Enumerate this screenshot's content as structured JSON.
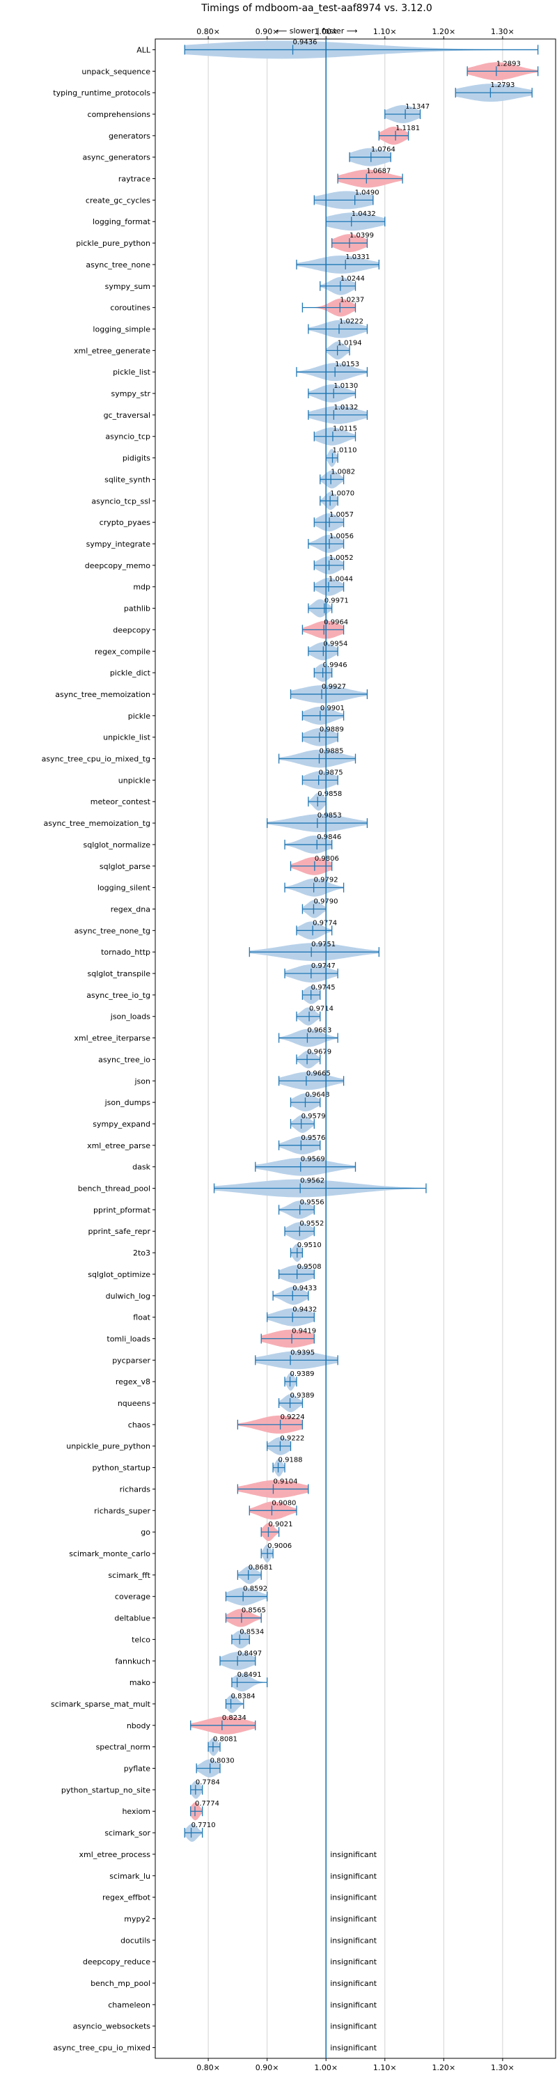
{
  "chart_data": {
    "type": "violin",
    "title": "Timings of mdboom-aa_test-aaf8974 vs. 3.12.0",
    "subtitle": "⟵ slower | faster ⟶",
    "x_tick_labels": [
      "0.80×",
      "0.90×",
      "1.00×",
      "1.10×",
      "1.20×",
      "1.30×"
    ],
    "x_ticks": [
      0.8,
      0.9,
      1.0,
      1.1,
      1.2,
      1.3
    ],
    "xlim": [
      0.71,
      1.39
    ],
    "reference_x": 1.0,
    "grid": true,
    "colors": {
      "faster": "#b4cfe8",
      "slower": "#f5aab0",
      "line": "#1f77b4",
      "grid": "#d3d3d3"
    },
    "insignificant_label": "insignificant",
    "benchmarks": [
      {
        "name": "ALL",
        "median": 0.9436,
        "label": "0.9436",
        "min": 0.76,
        "max": 1.36,
        "q1": 0.8,
        "q3": 1.05,
        "slower": false
      },
      {
        "name": "unpack_sequence",
        "median": 1.2893,
        "label": "1.2893",
        "min": 1.24,
        "max": 1.36,
        "q1": 1.26,
        "q3": 1.32,
        "slower": true
      },
      {
        "name": "typing_runtime_protocols",
        "median": 1.2793,
        "label": "1.2793",
        "min": 1.22,
        "max": 1.35,
        "q1": 1.24,
        "q3": 1.32,
        "slower": false
      },
      {
        "name": "comprehensions",
        "median": 1.1347,
        "label": "1.1347",
        "min": 1.1,
        "max": 1.16,
        "q1": 1.11,
        "q3": 1.15,
        "slower": false
      },
      {
        "name": "generators",
        "median": 1.1181,
        "label": "1.1181",
        "min": 1.09,
        "max": 1.14,
        "q1": 1.1,
        "q3": 1.13,
        "slower": true
      },
      {
        "name": "async_generators",
        "median": 1.0764,
        "label": "1.0764",
        "min": 1.04,
        "max": 1.11,
        "q1": 1.05,
        "q3": 1.1,
        "slower": false
      },
      {
        "name": "raytrace",
        "median": 1.0687,
        "label": "1.0687",
        "min": 1.02,
        "max": 1.13,
        "q1": 1.04,
        "q3": 1.1,
        "slower": true
      },
      {
        "name": "create_gc_cycles",
        "median": 1.049,
        "label": "1.0490",
        "min": 0.98,
        "max": 1.08,
        "q1": 1.0,
        "q3": 1.07,
        "slower": false
      },
      {
        "name": "logging_format",
        "median": 1.0432,
        "label": "1.0432",
        "min": 1.0,
        "max": 1.1,
        "q1": 1.01,
        "q3": 1.08,
        "slower": false
      },
      {
        "name": "pickle_pure_python",
        "median": 1.0399,
        "label": "1.0399",
        "min": 1.01,
        "max": 1.07,
        "q1": 1.02,
        "q3": 1.06,
        "slower": true
      },
      {
        "name": "async_tree_none",
        "median": 1.0331,
        "label": "1.0331",
        "min": 0.95,
        "max": 1.09,
        "q1": 0.99,
        "q3": 1.06,
        "slower": false
      },
      {
        "name": "sympy_sum",
        "median": 1.0244,
        "label": "1.0244",
        "min": 0.99,
        "max": 1.05,
        "q1": 1.01,
        "q3": 1.04,
        "slower": false
      },
      {
        "name": "coroutines",
        "median": 1.0237,
        "label": "1.0237",
        "min": 0.96,
        "max": 1.05,
        "q1": 1.01,
        "q3": 1.04,
        "slower": true
      },
      {
        "name": "logging_simple",
        "median": 1.0222,
        "label": "1.0222",
        "min": 0.97,
        "max": 1.07,
        "q1": 1.0,
        "q3": 1.05,
        "slower": false
      },
      {
        "name": "xml_etree_generate",
        "median": 1.0194,
        "label": "1.0194",
        "min": 1.0,
        "max": 1.04,
        "q1": 1.01,
        "q3": 1.03,
        "slower": false
      },
      {
        "name": "pickle_list",
        "median": 1.0153,
        "label": "1.0153",
        "min": 0.95,
        "max": 1.07,
        "q1": 0.99,
        "q3": 1.04,
        "slower": false
      },
      {
        "name": "sympy_str",
        "median": 1.013,
        "label": "1.0130",
        "min": 0.97,
        "max": 1.05,
        "q1": 0.99,
        "q3": 1.03,
        "slower": false
      },
      {
        "name": "gc_traversal",
        "median": 1.0132,
        "label": "1.0132",
        "min": 0.97,
        "max": 1.07,
        "q1": 0.99,
        "q3": 1.05,
        "slower": false
      },
      {
        "name": "asyncio_tcp",
        "median": 1.0115,
        "label": "1.0115",
        "min": 0.98,
        "max": 1.05,
        "q1": 0.99,
        "q3": 1.03,
        "slower": false
      },
      {
        "name": "pidigits",
        "median": 1.011,
        "label": "1.0110",
        "min": 1.0,
        "max": 1.02,
        "q1": 1.005,
        "q3": 1.015,
        "slower": false
      },
      {
        "name": "sqlite_synth",
        "median": 1.0082,
        "label": "1.0082",
        "min": 0.99,
        "max": 1.03,
        "q1": 1.0,
        "q3": 1.02,
        "slower": false
      },
      {
        "name": "asyncio_tcp_ssl",
        "median": 1.007,
        "label": "1.0070",
        "min": 0.99,
        "max": 1.02,
        "q1": 1.0,
        "q3": 1.015,
        "slower": false
      },
      {
        "name": "crypto_pyaes",
        "median": 1.0057,
        "label": "1.0057",
        "min": 0.98,
        "max": 1.03,
        "q1": 0.99,
        "q3": 1.02,
        "slower": false
      },
      {
        "name": "sympy_integrate",
        "median": 1.0056,
        "label": "1.0056",
        "min": 0.97,
        "max": 1.03,
        "q1": 0.99,
        "q3": 1.02,
        "slower": false
      },
      {
        "name": "deepcopy_memo",
        "median": 1.0052,
        "label": "1.0052",
        "min": 0.98,
        "max": 1.03,
        "q1": 0.99,
        "q3": 1.02,
        "slower": false
      },
      {
        "name": "mdp",
        "median": 1.0044,
        "label": "1.0044",
        "min": 0.98,
        "max": 1.03,
        "q1": 0.99,
        "q3": 1.02,
        "slower": false
      },
      {
        "name": "pathlib",
        "median": 0.9971,
        "label": "0.9971",
        "min": 0.97,
        "max": 1.01,
        "q1": 0.98,
        "q3": 1.0,
        "slower": false
      },
      {
        "name": "deepcopy",
        "median": 0.9964,
        "label": "0.9964",
        "min": 0.96,
        "max": 1.03,
        "q1": 0.98,
        "q3": 1.02,
        "slower": true
      },
      {
        "name": "regex_compile",
        "median": 0.9954,
        "label": "0.9954",
        "min": 0.97,
        "max": 1.02,
        "q1": 0.98,
        "q3": 1.01,
        "slower": false
      },
      {
        "name": "pickle_dict",
        "median": 0.9946,
        "label": "0.9946",
        "min": 0.98,
        "max": 1.01,
        "q1": 0.985,
        "q3": 1.005,
        "slower": false
      },
      {
        "name": "async_tree_memoization",
        "median": 0.9927,
        "label": "0.9927",
        "min": 0.94,
        "max": 1.07,
        "q1": 0.96,
        "q3": 1.03,
        "slower": false
      },
      {
        "name": "pickle",
        "median": 0.9901,
        "label": "0.9901",
        "min": 0.96,
        "max": 1.03,
        "q1": 0.97,
        "q3": 1.01,
        "slower": false
      },
      {
        "name": "unpickle_list",
        "median": 0.9889,
        "label": "0.9889",
        "min": 0.96,
        "max": 1.02,
        "q1": 0.97,
        "q3": 1.01,
        "slower": false
      },
      {
        "name": "async_tree_cpu_io_mixed_tg",
        "median": 0.9885,
        "label": "0.9885",
        "min": 0.92,
        "max": 1.05,
        "q1": 0.96,
        "q3": 1.02,
        "slower": false
      },
      {
        "name": "unpickle",
        "median": 0.9875,
        "label": "0.9875",
        "min": 0.96,
        "max": 1.02,
        "q1": 0.97,
        "q3": 1.01,
        "slower": false
      },
      {
        "name": "meteor_contest",
        "median": 0.9858,
        "label": "0.9858",
        "min": 0.97,
        "max": 1.0,
        "q1": 0.98,
        "q3": 0.995,
        "slower": false
      },
      {
        "name": "async_tree_memoization_tg",
        "median": 0.9853,
        "label": "0.9853",
        "min": 0.9,
        "max": 1.07,
        "q1": 0.95,
        "q3": 1.03,
        "slower": false
      },
      {
        "name": "sqlglot_normalize",
        "median": 0.9846,
        "label": "0.9846",
        "min": 0.93,
        "max": 1.01,
        "q1": 0.96,
        "q3": 1.0,
        "slower": false
      },
      {
        "name": "sqlglot_parse",
        "median": 0.9806,
        "label": "0.9806",
        "min": 0.94,
        "max": 1.01,
        "q1": 0.96,
        "q3": 1.0,
        "slower": true
      },
      {
        "name": "logging_silent",
        "median": 0.9792,
        "label": "0.9792",
        "min": 0.93,
        "max": 1.03,
        "q1": 0.96,
        "q3": 1.0,
        "slower": false
      },
      {
        "name": "regex_dna",
        "median": 0.979,
        "label": "0.9790",
        "min": 0.96,
        "max": 1.0,
        "q1": 0.97,
        "q3": 0.99,
        "slower": false
      },
      {
        "name": "async_tree_none_tg",
        "median": 0.9774,
        "label": "0.9774",
        "min": 0.95,
        "max": 1.01,
        "q1": 0.96,
        "q3": 0.99,
        "slower": false
      },
      {
        "name": "tornado_http",
        "median": 0.9751,
        "label": "0.9751",
        "min": 0.87,
        "max": 1.09,
        "q1": 0.93,
        "q3": 1.03,
        "slower": false
      },
      {
        "name": "sqlglot_transpile",
        "median": 0.9747,
        "label": "0.9747",
        "min": 0.93,
        "max": 1.02,
        "q1": 0.95,
        "q3": 1.0,
        "slower": false
      },
      {
        "name": "async_tree_io_tg",
        "median": 0.9745,
        "label": "0.9745",
        "min": 0.96,
        "max": 0.99,
        "q1": 0.965,
        "q3": 0.985,
        "slower": false
      },
      {
        "name": "json_loads",
        "median": 0.9714,
        "label": "0.9714",
        "min": 0.95,
        "max": 0.99,
        "q1": 0.96,
        "q3": 0.98,
        "slower": false
      },
      {
        "name": "xml_etree_iterparse",
        "median": 0.9683,
        "label": "0.9683",
        "min": 0.92,
        "max": 1.02,
        "q1": 0.95,
        "q3": 0.99,
        "slower": false
      },
      {
        "name": "async_tree_io",
        "median": 0.9679,
        "label": "0.9679",
        "min": 0.95,
        "max": 0.99,
        "q1": 0.96,
        "q3": 0.98,
        "slower": false
      },
      {
        "name": "json",
        "median": 0.9665,
        "label": "0.9665",
        "min": 0.92,
        "max": 1.03,
        "q1": 0.94,
        "q3": 1.0,
        "slower": false
      },
      {
        "name": "json_dumps",
        "median": 0.9648,
        "label": "0.9648",
        "min": 0.94,
        "max": 0.99,
        "q1": 0.95,
        "q3": 0.98,
        "slower": false
      },
      {
        "name": "sympy_expand",
        "median": 0.9579,
        "label": "0.9579",
        "min": 0.94,
        "max": 0.98,
        "q1": 0.95,
        "q3": 0.97,
        "slower": false
      },
      {
        "name": "xml_etree_parse",
        "median": 0.9576,
        "label": "0.9576",
        "min": 0.92,
        "max": 0.99,
        "q1": 0.94,
        "q3": 0.98,
        "slower": false
      },
      {
        "name": "dask",
        "median": 0.9569,
        "label": "0.9569",
        "min": 0.88,
        "max": 1.05,
        "q1": 0.92,
        "q3": 1.0,
        "slower": false
      },
      {
        "name": "bench_thread_pool",
        "median": 0.9562,
        "label": "0.9562",
        "min": 0.81,
        "max": 1.17,
        "q1": 0.88,
        "q3": 1.03,
        "slower": false
      },
      {
        "name": "pprint_pformat",
        "median": 0.9556,
        "label": "0.9556",
        "min": 0.92,
        "max": 0.98,
        "q1": 0.94,
        "q3": 0.97,
        "slower": false
      },
      {
        "name": "pprint_safe_repr",
        "median": 0.9552,
        "label": "0.9552",
        "min": 0.93,
        "max": 0.98,
        "q1": 0.94,
        "q3": 0.97,
        "slower": false
      },
      {
        "name": "2to3",
        "median": 0.951,
        "label": "0.9510",
        "min": 0.94,
        "max": 0.96,
        "q1": 0.945,
        "q3": 0.957,
        "slower": false
      },
      {
        "name": "sqlglot_optimize",
        "median": 0.9508,
        "label": "0.9508",
        "min": 0.92,
        "max": 0.98,
        "q1": 0.93,
        "q3": 0.97,
        "slower": false
      },
      {
        "name": "dulwich_log",
        "median": 0.9433,
        "label": "0.9433",
        "min": 0.91,
        "max": 0.97,
        "q1": 0.93,
        "q3": 0.96,
        "slower": false
      },
      {
        "name": "float",
        "median": 0.9432,
        "label": "0.9432",
        "min": 0.9,
        "max": 0.98,
        "q1": 0.92,
        "q3": 0.97,
        "slower": false
      },
      {
        "name": "tomli_loads",
        "median": 0.9419,
        "label": "0.9419",
        "min": 0.89,
        "max": 0.98,
        "q1": 0.91,
        "q3": 0.97,
        "slower": true
      },
      {
        "name": "pycparser",
        "median": 0.9395,
        "label": "0.9395",
        "min": 0.88,
        "max": 1.02,
        "q1": 0.91,
        "q3": 0.99,
        "slower": false
      },
      {
        "name": "regex_v8",
        "median": 0.9389,
        "label": "0.9389",
        "min": 0.93,
        "max": 0.95,
        "q1": 0.935,
        "q3": 0.945,
        "slower": false
      },
      {
        "name": "nqueens",
        "median": 0.9389,
        "label": "0.9389",
        "min": 0.92,
        "max": 0.96,
        "q1": 0.93,
        "q3": 0.95,
        "slower": false
      },
      {
        "name": "chaos",
        "median": 0.9224,
        "label": "0.9224",
        "min": 0.85,
        "max": 0.96,
        "q1": 0.89,
        "q3": 0.95,
        "slower": true
      },
      {
        "name": "unpickle_pure_python",
        "median": 0.9222,
        "label": "0.9222",
        "min": 0.9,
        "max": 0.94,
        "q1": 0.91,
        "q3": 0.935,
        "slower": false
      },
      {
        "name": "python_startup",
        "median": 0.9188,
        "label": "0.9188",
        "min": 0.91,
        "max": 0.93,
        "q1": 0.915,
        "q3": 0.925,
        "slower": false
      },
      {
        "name": "richards",
        "median": 0.9104,
        "label": "0.9104",
        "min": 0.85,
        "max": 0.97,
        "q1": 0.88,
        "q3": 0.95,
        "slower": true
      },
      {
        "name": "richards_super",
        "median": 0.908,
        "label": "0.9080",
        "min": 0.87,
        "max": 0.95,
        "q1": 0.89,
        "q3": 0.93,
        "slower": true
      },
      {
        "name": "go",
        "median": 0.9021,
        "label": "0.9021",
        "min": 0.89,
        "max": 0.92,
        "q1": 0.895,
        "q3": 0.91,
        "slower": true
      },
      {
        "name": "scimark_monte_carlo",
        "median": 0.9006,
        "label": "0.9006",
        "min": 0.89,
        "max": 0.91,
        "q1": 0.895,
        "q3": 0.905,
        "slower": false
      },
      {
        "name": "scimark_fft",
        "median": 0.8681,
        "label": "0.8681",
        "min": 0.85,
        "max": 0.89,
        "q1": 0.86,
        "q3": 0.88,
        "slower": false
      },
      {
        "name": "coverage",
        "median": 0.8592,
        "label": "0.8592",
        "min": 0.83,
        "max": 0.9,
        "q1": 0.84,
        "q3": 0.88,
        "slower": false
      },
      {
        "name": "deltablue",
        "median": 0.8565,
        "label": "0.8565",
        "min": 0.83,
        "max": 0.89,
        "q1": 0.84,
        "q3": 0.87,
        "slower": true
      },
      {
        "name": "telco",
        "median": 0.8534,
        "label": "0.8534",
        "min": 0.84,
        "max": 0.87,
        "q1": 0.845,
        "q3": 0.865,
        "slower": false
      },
      {
        "name": "fannkuch",
        "median": 0.8497,
        "label": "0.8497",
        "min": 0.82,
        "max": 0.88,
        "q1": 0.83,
        "q3": 0.87,
        "slower": false
      },
      {
        "name": "mako",
        "median": 0.8491,
        "label": "0.8491",
        "min": 0.84,
        "max": 0.9,
        "q1": 0.845,
        "q3": 0.87,
        "slower": false
      },
      {
        "name": "scimark_sparse_mat_mult",
        "median": 0.8384,
        "label": "0.8384",
        "min": 0.83,
        "max": 0.86,
        "q1": 0.833,
        "q3": 0.848,
        "slower": false
      },
      {
        "name": "nbody",
        "median": 0.8234,
        "label": "0.8234",
        "min": 0.77,
        "max": 0.88,
        "q1": 0.8,
        "q3": 0.86,
        "slower": true
      },
      {
        "name": "spectral_norm",
        "median": 0.8081,
        "label": "0.8081",
        "min": 0.8,
        "max": 0.82,
        "q1": 0.803,
        "q3": 0.815,
        "slower": false
      },
      {
        "name": "pyflate",
        "median": 0.803,
        "label": "0.8030",
        "min": 0.78,
        "max": 0.82,
        "q1": 0.79,
        "q3": 0.815,
        "slower": false
      },
      {
        "name": "python_startup_no_site",
        "median": 0.7784,
        "label": "0.7784",
        "min": 0.77,
        "max": 0.79,
        "q1": 0.773,
        "q3": 0.785,
        "slower": false
      },
      {
        "name": "hexiom",
        "median": 0.7774,
        "label": "0.7774",
        "min": 0.77,
        "max": 0.79,
        "q1": 0.772,
        "q3": 0.784,
        "slower": true
      },
      {
        "name": "scimark_sor",
        "median": 0.771,
        "label": "0.7710",
        "min": 0.76,
        "max": 0.79,
        "q1": 0.765,
        "q3": 0.78,
        "slower": false
      },
      {
        "name": "xml_etree_process",
        "insignificant": true
      },
      {
        "name": "scimark_lu",
        "insignificant": true
      },
      {
        "name": "regex_effbot",
        "insignificant": true
      },
      {
        "name": "mypy2",
        "insignificant": true
      },
      {
        "name": "docutils",
        "insignificant": true
      },
      {
        "name": "deepcopy_reduce",
        "insignificant": true
      },
      {
        "name": "bench_mp_pool",
        "insignificant": true
      },
      {
        "name": "chameleon",
        "insignificant": true
      },
      {
        "name": "asyncio_websockets",
        "insignificant": true
      },
      {
        "name": "async_tree_cpu_io_mixed",
        "insignificant": true
      }
    ]
  }
}
